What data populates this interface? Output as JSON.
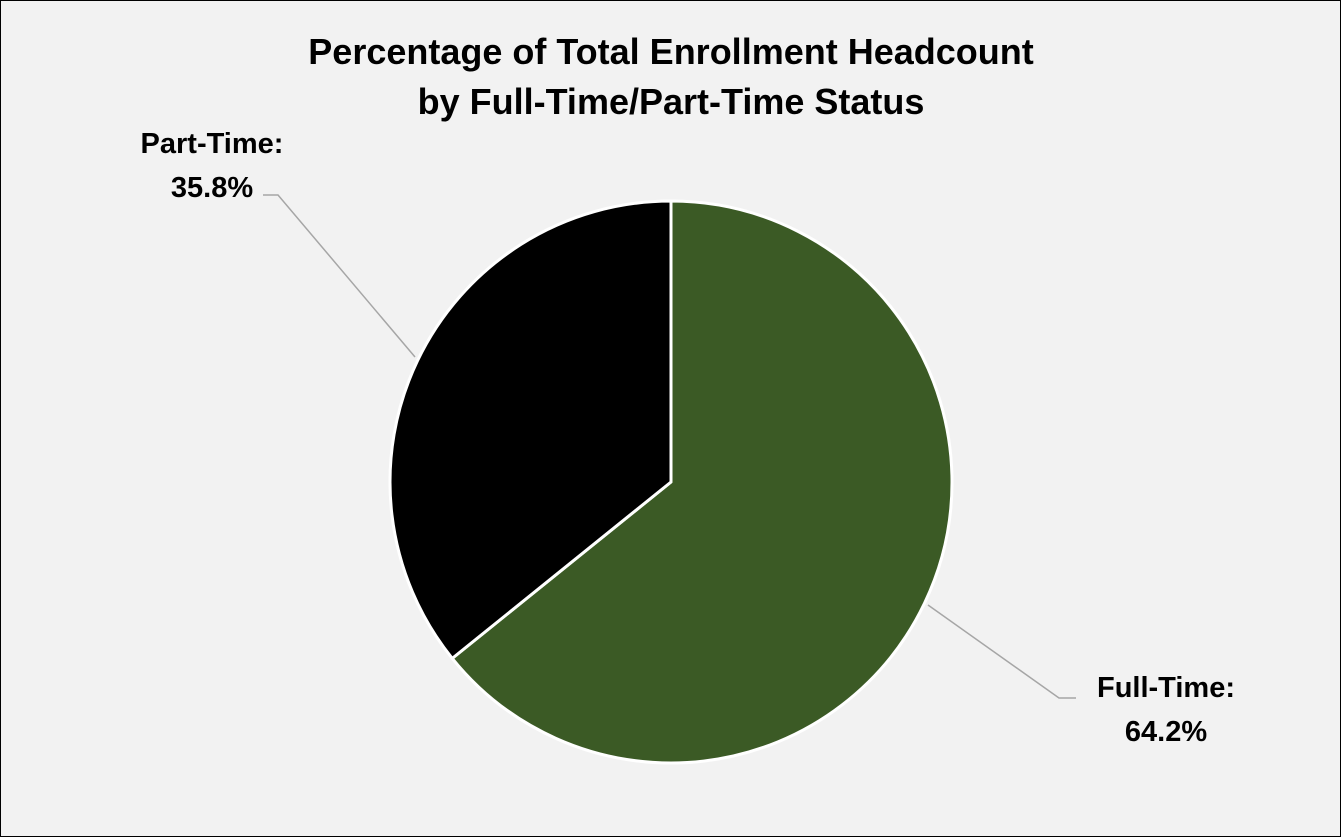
{
  "chart_data": {
    "type": "pie",
    "title_lines": [
      "Percentage of Total Enrollment Headcount",
      "by Full-Time/Part-Time Status"
    ],
    "slices": [
      {
        "name": "Full-Time",
        "label_name": "Full-Time:",
        "value": 64.2,
        "label_value": "64.2%",
        "color": "#3b5a25"
      },
      {
        "name": "Part-Time",
        "label_name": "Part-Time:",
        "value": 35.8,
        "label_value": "35.8%",
        "color": "#000000"
      }
    ],
    "start_angle_deg": 0,
    "direction": "clockwise",
    "slice_border_color": "#ffffff",
    "leader_line_color": "#a6a6a6",
    "background_color": "#f2f2f2",
    "legend": "none"
  }
}
